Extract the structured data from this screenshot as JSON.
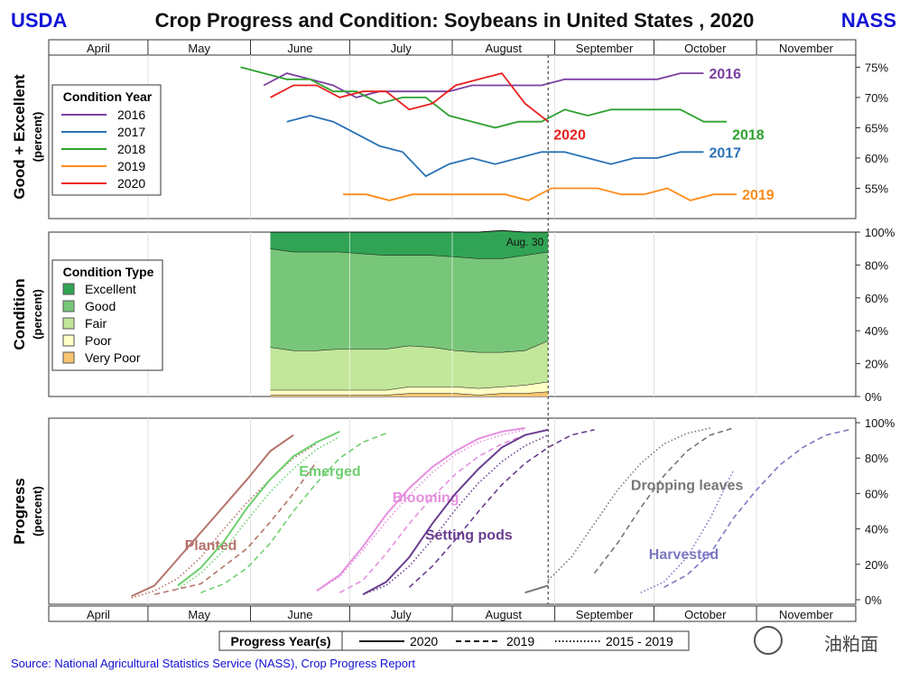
{
  "header": {
    "left_logo": "USDA",
    "right_logo": "NASS",
    "title": "Crop Progress and Condition: Soybeans in United States , 2020"
  },
  "months": [
    "April",
    "May",
    "June",
    "July",
    "August",
    "September",
    "October",
    "November"
  ],
  "source": "Source: National Agricultural Statistics Service (NASS), Crop Progress Report",
  "watermark": "油粕面",
  "chart_data": [
    {
      "type": "line",
      "id": "good_excellent",
      "ylabel": "Good + Excellent",
      "ylabel2": "(percent)",
      "yticks": [
        "75%",
        "70%",
        "65%",
        "60%",
        "55%"
      ],
      "ylim": [
        50,
        77
      ],
      "legend_title": "Condition Year",
      "x_unit": "day of year",
      "series": [
        {
          "name": "2016",
          "color": "#7b3fa0",
          "x": [
            156,
            163,
            170,
            177,
            184,
            191,
            198,
            205,
            212,
            219,
            226,
            233,
            240,
            247,
            254,
            261,
            268,
            275,
            282,
            289
          ],
          "y": [
            72,
            74,
            73,
            72,
            70,
            71,
            71,
            71,
            71,
            72,
            72,
            72,
            72,
            73,
            73,
            73,
            73,
            73,
            74,
            74
          ]
        },
        {
          "name": "2017",
          "color": "#2a72b5",
          "x": [
            163,
            170,
            177,
            184,
            191,
            198,
            205,
            212,
            219,
            226,
            233,
            240,
            247,
            254,
            261,
            268,
            275,
            282,
            289
          ],
          "y": [
            66,
            67,
            66,
            64,
            62,
            61,
            57,
            59,
            60,
            59,
            60,
            61,
            61,
            60,
            59,
            60,
            60,
            61,
            61
          ]
        },
        {
          "name": "2018",
          "color": "#2ea12e",
          "x": [
            149,
            156,
            163,
            170,
            177,
            184,
            191,
            198,
            205,
            212,
            219,
            226,
            233,
            240,
            247,
            254,
            261,
            268,
            275,
            282,
            289,
            296
          ],
          "y": [
            75,
            74,
            73,
            73,
            71,
            71,
            69,
            70,
            70,
            67,
            66,
            65,
            66,
            66,
            68,
            67,
            68,
            68,
            68,
            68,
            66,
            66
          ]
        },
        {
          "name": "2019",
          "color": "#ff8c1a",
          "x": [
            180,
            187,
            194,
            201,
            208,
            215,
            222,
            229,
            236,
            243,
            250,
            257,
            264,
            271,
            278,
            285,
            292,
            299
          ],
          "y": [
            54,
            54,
            53,
            54,
            54,
            54,
            54,
            54,
            53,
            55,
            55,
            55,
            54,
            54,
            55,
            53,
            54,
            54
          ]
        },
        {
          "name": "2020",
          "color": "#e8201f",
          "x": [
            158,
            165,
            172,
            179,
            186,
            193,
            200,
            207,
            214,
            221,
            228,
            235,
            242
          ],
          "y": [
            70,
            72,
            72,
            70,
            71,
            71,
            68,
            69,
            72,
            73,
            74,
            69,
            66
          ]
        }
      ]
    },
    {
      "type": "area",
      "id": "condition",
      "ylabel": "Condition",
      "ylabel2": "(percent)",
      "yticks": [
        "100%",
        "80%",
        "60%",
        "40%",
        "20%",
        "0%"
      ],
      "ylim": [
        0,
        100
      ],
      "legend_title": "Condition Type",
      "annotation": "Aug. 30",
      "x_unit": "day of year",
      "x": [
        158,
        165,
        172,
        179,
        186,
        193,
        200,
        207,
        214,
        221,
        228,
        235,
        242
      ],
      "series": [
        {
          "name": "Very Poor",
          "color": "#f7c471",
          "values": [
            1,
            1,
            1,
            1,
            1,
            1,
            2,
            2,
            2,
            1,
            2,
            2,
            3
          ]
        },
        {
          "name": "Poor",
          "color": "#ffffc6",
          "values": [
            3,
            3,
            3,
            3,
            3,
            3,
            4,
            4,
            4,
            4,
            4,
            5,
            6
          ]
        },
        {
          "name": "Fair",
          "color": "#c2e69a",
          "values": [
            26,
            24,
            24,
            25,
            25,
            25,
            25,
            24,
            22,
            22,
            21,
            21,
            25
          ]
        },
        {
          "name": "Good",
          "color": "#78c679",
          "values": [
            60,
            60,
            60,
            59,
            58,
            57,
            55,
            56,
            57,
            57,
            57,
            58,
            54
          ]
        },
        {
          "name": "Excellent",
          "color": "#31a354",
          "values": [
            10,
            12,
            12,
            12,
            13,
            14,
            14,
            14,
            15,
            16,
            17,
            14,
            12
          ]
        }
      ]
    },
    {
      "type": "line",
      "id": "progress",
      "ylabel": "Progress",
      "ylabel2": "(percent)",
      "yticks": [
        "100%",
        "80%",
        "60%",
        "40%",
        "20%",
        "0%"
      ],
      "ylim": [
        0,
        100
      ],
      "x_unit": "day of year",
      "legend_title": "Progress Year(s)",
      "legend_items": [
        {
          "label": "2020",
          "style": "solid"
        },
        {
          "label": "2019",
          "style": "dashed"
        },
        {
          "label": "2015 - 2019",
          "style": "dotted"
        }
      ],
      "stages": [
        {
          "name": "Planted",
          "color": "#b5736b",
          "series": [
            {
              "year": "2020",
              "style": "solid",
              "x": [
                116,
                123,
                130,
                137,
                144,
                151,
                158,
                165
              ],
              "y": [
                2,
                8,
                23,
                38,
                53,
                68,
                84,
                93
              ]
            },
            {
              "year": "2019",
              "style": "dashed",
              "x": [
                123,
                130,
                137,
                144,
                151,
                158,
                165,
                172
              ],
              "y": [
                3,
                6,
                9,
                19,
                29,
                44,
                60,
                78
              ]
            },
            {
              "year": "2015 - 2019",
              "style": "dotted",
              "x": [
                116,
                123,
                130,
                137,
                144,
                151,
                158,
                165,
                172
              ],
              "y": [
                1,
                5,
                12,
                24,
                40,
                55,
                68,
                80,
                88
              ]
            }
          ]
        },
        {
          "name": "Emerged",
          "color": "#6fcf6f",
          "series": [
            {
              "year": "2020",
              "style": "solid",
              "x": [
                130,
                137,
                144,
                151,
                158,
                165,
                172,
                179
              ],
              "y": [
                8,
                18,
                33,
                52,
                68,
                81,
                89,
                95
              ]
            },
            {
              "year": "2019",
              "style": "dashed",
              "x": [
                137,
                144,
                151,
                158,
                165,
                172,
                179,
                186,
                193
              ],
              "y": [
                4,
                9,
                18,
                32,
                50,
                66,
                80,
                89,
                94
              ]
            },
            {
              "year": "2015 - 2019",
              "style": "dotted",
              "x": [
                130,
                137,
                144,
                151,
                158,
                165,
                172,
                179
              ],
              "y": [
                6,
                15,
                28,
                45,
                61,
                74,
                85,
                92
              ]
            }
          ]
        },
        {
          "name": "Blooming",
          "color": "#e68fe0",
          "series": [
            {
              "year": "2020",
              "style": "solid",
              "x": [
                172,
                179,
                186,
                193,
                200,
                207,
                214,
                221,
                228,
                235
              ],
              "y": [
                5,
                14,
                30,
                48,
                63,
                75,
                84,
                91,
                95,
                97
              ]
            },
            {
              "year": "2019",
              "style": "dashed",
              "x": [
                179,
                186,
                193,
                200,
                207,
                214,
                221,
                228,
                235,
                242
              ],
              "y": [
                4,
                11,
                26,
                43,
                58,
                71,
                81,
                88,
                93,
                96
              ]
            },
            {
              "year": "2015 - 2019",
              "style": "dotted",
              "x": [
                172,
                179,
                186,
                193,
                200,
                207,
                214,
                221,
                228,
                235
              ],
              "y": [
                5,
                13,
                28,
                44,
                59,
                72,
                82,
                89,
                93,
                96
              ]
            }
          ]
        },
        {
          "name": "Setting pods",
          "color": "#6a3d8f",
          "series": [
            {
              "year": "2020",
              "style": "solid",
              "x": [
                186,
                193,
                200,
                207,
                214,
                221,
                228,
                235,
                242
              ],
              "y": [
                3,
                10,
                24,
                43,
                60,
                74,
                86,
                93,
                96
              ]
            },
            {
              "year": "2019",
              "style": "dashed",
              "x": [
                200,
                207,
                214,
                221,
                228,
                235,
                242,
                249,
                256
              ],
              "y": [
                7,
                19,
                34,
                50,
                65,
                77,
                86,
                93,
                96
              ]
            },
            {
              "year": "2015 - 2019",
              "style": "dotted",
              "x": [
                186,
                193,
                200,
                207,
                214,
                221,
                228,
                235,
                242
              ],
              "y": [
                3,
                8,
                19,
                34,
                51,
                66,
                78,
                87,
                93
              ]
            }
          ]
        },
        {
          "name": "Dropping leaves",
          "color": "#777777",
          "series": [
            {
              "year": "2020",
              "style": "solid",
              "x": [
                235,
                242
              ],
              "y": [
                4,
                8
              ]
            },
            {
              "year": "2019",
              "style": "dashed",
              "x": [
                256,
                263,
                270,
                277,
                284,
                291,
                298
              ],
              "y": [
                15,
                32,
                52,
                70,
                84,
                93,
                97
              ]
            },
            {
              "year": "2015 - 2019",
              "style": "dotted",
              "x": [
                242,
                249,
                256,
                263,
                270,
                277,
                284,
                291
              ],
              "y": [
                11,
                24,
                43,
                62,
                77,
                88,
                94,
                97
              ]
            }
          ]
        },
        {
          "name": "Harvested",
          "color": "#7a78c2",
          "series": [
            {
              "year": "2019",
              "style": "dashed",
              "x": [
                277,
                284,
                291,
                298,
                305,
                312,
                319,
                326,
                333
              ],
              "y": [
                7,
                14,
                26,
                46,
                62,
                76,
                86,
                93,
                96
              ]
            },
            {
              "year": "2015 - 2019",
              "style": "dotted",
              "x": [
                270,
                277,
                284,
                291,
                298
              ],
              "y": [
                4,
                10,
                24,
                46,
                73
              ]
            }
          ]
        }
      ]
    }
  ]
}
